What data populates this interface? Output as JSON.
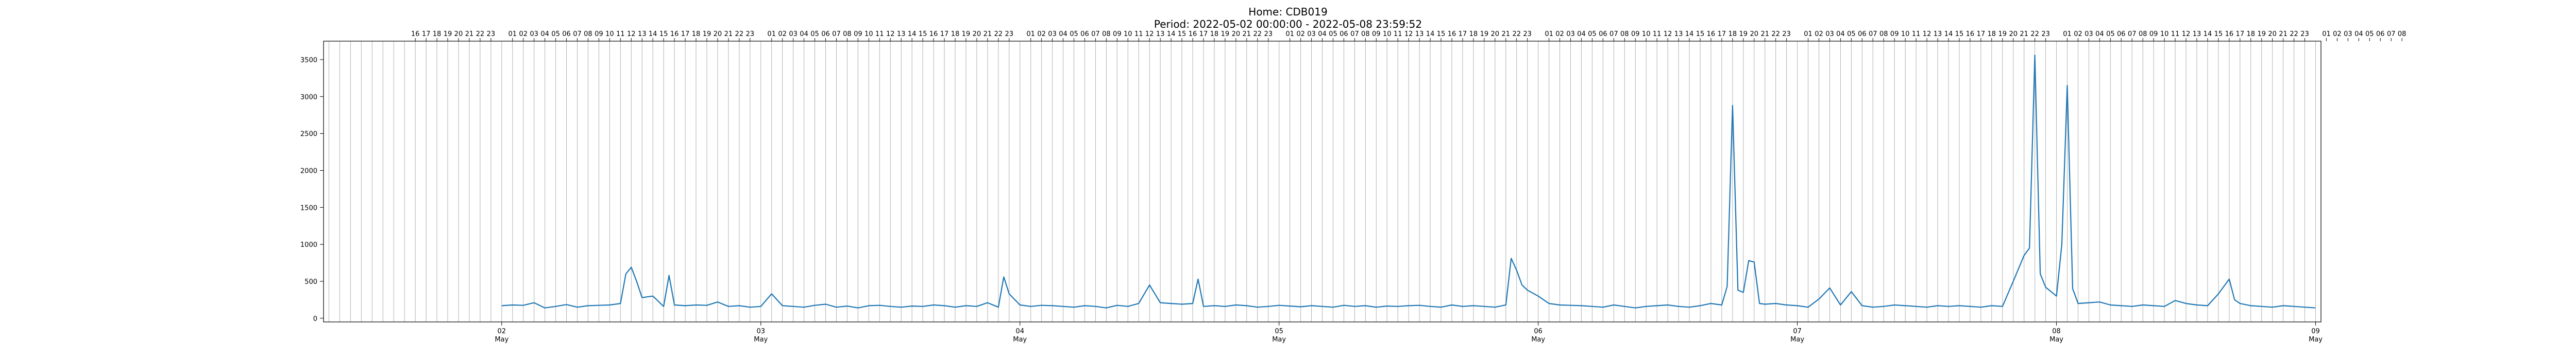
{
  "chart_data": {
    "type": "line",
    "title_line1": "Home: CDB019",
    "title_line2": "Period: 2022-05-02 00:00:00 - 2022-05-08 23:59:52",
    "xlabel": "",
    "ylabel": "",
    "ylim": [
      -50,
      3750
    ],
    "yticks": [
      0,
      500,
      1000,
      1500,
      2000,
      2500,
      3000,
      3500
    ],
    "xlim_hours": [
      -16.5,
      168.5
    ],
    "x_axis_start": "2022-05-01 07:30",
    "x_axis_end": "2022-05-09 08:30",
    "bottom_ticks": [
      {
        "day": "02",
        "month": "May"
      },
      {
        "day": "03",
        "month": "May"
      },
      {
        "day": "04",
        "month": "May"
      },
      {
        "day": "05",
        "month": "May"
      },
      {
        "day": "06",
        "month": "May"
      },
      {
        "day": "07",
        "month": "May"
      },
      {
        "day": "08",
        "month": "May"
      },
      {
        "day": "09",
        "month": "May"
      }
    ],
    "top_hour_labels_first_day": [
      "16",
      "17",
      "18",
      "19",
      "20",
      "21",
      "22",
      "23"
    ],
    "top_hour_labels_full_day": [
      "01",
      "02",
      "03",
      "04",
      "05",
      "06",
      "07",
      "08",
      "09",
      "10",
      "11",
      "12",
      "13",
      "14",
      "15",
      "16",
      "17",
      "18",
      "19",
      "20",
      "21",
      "22",
      "23"
    ],
    "top_hour_labels_last_day": [
      "01",
      "02",
      "03",
      "04",
      "05",
      "06",
      "07",
      "08"
    ],
    "grid": "vertical hourly gridlines",
    "line_color": "#1f77b4",
    "series": [
      {
        "name": "",
        "points": [
          [
            "2022-05-02 00:00",
            170
          ],
          [
            "2022-05-02 01:00",
            180
          ],
          [
            "2022-05-02 02:00",
            175
          ],
          [
            "2022-05-02 03:00",
            210
          ],
          [
            "2022-05-02 04:00",
            140
          ],
          [
            "2022-05-02 05:00",
            160
          ],
          [
            "2022-05-02 06:00",
            185
          ],
          [
            "2022-05-02 07:00",
            150
          ],
          [
            "2022-05-02 08:00",
            170
          ],
          [
            "2022-05-02 09:00",
            175
          ],
          [
            "2022-05-02 10:00",
            180
          ],
          [
            "2022-05-02 11:00",
            200
          ],
          [
            "2022-05-02 11:30",
            600
          ],
          [
            "2022-05-02 12:00",
            690
          ],
          [
            "2022-05-02 12:30",
            500
          ],
          [
            "2022-05-02 13:00",
            280
          ],
          [
            "2022-05-02 14:00",
            300
          ],
          [
            "2022-05-02 15:00",
            160
          ],
          [
            "2022-05-02 15:30",
            580
          ],
          [
            "2022-05-02 16:00",
            180
          ],
          [
            "2022-05-02 17:00",
            170
          ],
          [
            "2022-05-02 18:00",
            180
          ],
          [
            "2022-05-02 19:00",
            175
          ],
          [
            "2022-05-02 20:00",
            220
          ],
          [
            "2022-05-02 21:00",
            160
          ],
          [
            "2022-05-02 22:00",
            170
          ],
          [
            "2022-05-02 23:00",
            150
          ],
          [
            "2022-05-03 00:00",
            160
          ],
          [
            "2022-05-03 01:00",
            330
          ],
          [
            "2022-05-03 02:00",
            170
          ],
          [
            "2022-05-03 03:00",
            160
          ],
          [
            "2022-05-03 04:00",
            150
          ],
          [
            "2022-05-03 05:00",
            175
          ],
          [
            "2022-05-03 06:00",
            190
          ],
          [
            "2022-05-03 07:00",
            150
          ],
          [
            "2022-05-03 08:00",
            165
          ],
          [
            "2022-05-03 09:00",
            140
          ],
          [
            "2022-05-03 10:00",
            170
          ],
          [
            "2022-05-03 11:00",
            175
          ],
          [
            "2022-05-03 12:00",
            160
          ],
          [
            "2022-05-03 13:00",
            150
          ],
          [
            "2022-05-03 14:00",
            165
          ],
          [
            "2022-05-03 15:00",
            160
          ],
          [
            "2022-05-03 16:00",
            180
          ],
          [
            "2022-05-03 17:00",
            170
          ],
          [
            "2022-05-03 18:00",
            150
          ],
          [
            "2022-05-03 19:00",
            170
          ],
          [
            "2022-05-03 20:00",
            160
          ],
          [
            "2022-05-03 21:00",
            210
          ],
          [
            "2022-05-03 22:00",
            150
          ],
          [
            "2022-05-03 22:30",
            560
          ],
          [
            "2022-05-03 23:00",
            330
          ],
          [
            "2022-05-04 00:00",
            180
          ],
          [
            "2022-05-04 01:00",
            160
          ],
          [
            "2022-05-04 02:00",
            175
          ],
          [
            "2022-05-04 03:00",
            170
          ],
          [
            "2022-05-04 04:00",
            160
          ],
          [
            "2022-05-04 05:00",
            150
          ],
          [
            "2022-05-04 06:00",
            170
          ],
          [
            "2022-05-04 07:00",
            160
          ],
          [
            "2022-05-04 08:00",
            140
          ],
          [
            "2022-05-04 09:00",
            175
          ],
          [
            "2022-05-04 10:00",
            160
          ],
          [
            "2022-05-04 11:00",
            200
          ],
          [
            "2022-05-04 12:00",
            450
          ],
          [
            "2022-05-04 13:00",
            210
          ],
          [
            "2022-05-04 14:00",
            200
          ],
          [
            "2022-05-04 15:00",
            190
          ],
          [
            "2022-05-04 16:00",
            200
          ],
          [
            "2022-05-04 16:30",
            530
          ],
          [
            "2022-05-04 17:00",
            160
          ],
          [
            "2022-05-04 18:00",
            170
          ],
          [
            "2022-05-04 19:00",
            160
          ],
          [
            "2022-05-04 20:00",
            180
          ],
          [
            "2022-05-04 21:00",
            170
          ],
          [
            "2022-05-04 22:00",
            150
          ],
          [
            "2022-05-04 23:00",
            160
          ],
          [
            "2022-05-05 00:00",
            175
          ],
          [
            "2022-05-05 01:00",
            165
          ],
          [
            "2022-05-05 02:00",
            155
          ],
          [
            "2022-05-05 03:00",
            170
          ],
          [
            "2022-05-05 04:00",
            160
          ],
          [
            "2022-05-05 05:00",
            150
          ],
          [
            "2022-05-05 06:00",
            175
          ],
          [
            "2022-05-05 07:00",
            160
          ],
          [
            "2022-05-05 08:00",
            170
          ],
          [
            "2022-05-05 09:00",
            150
          ],
          [
            "2022-05-05 10:00",
            165
          ],
          [
            "2022-05-05 11:00",
            160
          ],
          [
            "2022-05-05 12:00",
            170
          ],
          [
            "2022-05-05 13:00",
            175
          ],
          [
            "2022-05-05 14:00",
            160
          ],
          [
            "2022-05-05 15:00",
            150
          ],
          [
            "2022-05-05 16:00",
            180
          ],
          [
            "2022-05-05 17:00",
            160
          ],
          [
            "2022-05-05 18:00",
            170
          ],
          [
            "2022-05-05 19:00",
            160
          ],
          [
            "2022-05-05 20:00",
            150
          ],
          [
            "2022-05-05 21:00",
            180
          ],
          [
            "2022-05-05 21:30",
            810
          ],
          [
            "2022-05-05 22:00",
            650
          ],
          [
            "2022-05-05 22:30",
            450
          ],
          [
            "2022-05-05 23:00",
            380
          ],
          [
            "2022-05-06 00:00",
            300
          ],
          [
            "2022-05-06 01:00",
            200
          ],
          [
            "2022-05-06 02:00",
            180
          ],
          [
            "2022-05-06 03:00",
            175
          ],
          [
            "2022-05-06 04:00",
            170
          ],
          [
            "2022-05-06 05:00",
            160
          ],
          [
            "2022-05-06 06:00",
            150
          ],
          [
            "2022-05-06 07:00",
            180
          ],
          [
            "2022-05-06 08:00",
            160
          ],
          [
            "2022-05-06 09:00",
            140
          ],
          [
            "2022-05-06 10:00",
            160
          ],
          [
            "2022-05-06 11:00",
            170
          ],
          [
            "2022-05-06 12:00",
            180
          ],
          [
            "2022-05-06 13:00",
            160
          ],
          [
            "2022-05-06 14:00",
            150
          ],
          [
            "2022-05-06 15:00",
            170
          ],
          [
            "2022-05-06 16:00",
            200
          ],
          [
            "2022-05-06 17:00",
            180
          ],
          [
            "2022-05-06 17:30",
            430
          ],
          [
            "2022-05-06 18:00",
            2880
          ],
          [
            "2022-05-06 18:30",
            380
          ],
          [
            "2022-05-06 19:00",
            350
          ],
          [
            "2022-05-06 19:30",
            780
          ],
          [
            "2022-05-06 20:00",
            760
          ],
          [
            "2022-05-06 20:30",
            200
          ],
          [
            "2022-05-06 21:00",
            190
          ],
          [
            "2022-05-06 22:00",
            200
          ],
          [
            "2022-05-06 23:00",
            180
          ],
          [
            "2022-05-07 00:00",
            170
          ],
          [
            "2022-05-07 01:00",
            150
          ],
          [
            "2022-05-07 02:00",
            260
          ],
          [
            "2022-05-07 03:00",
            410
          ],
          [
            "2022-05-07 04:00",
            180
          ],
          [
            "2022-05-07 05:00",
            360
          ],
          [
            "2022-05-07 06:00",
            170
          ],
          [
            "2022-05-07 07:00",
            150
          ],
          [
            "2022-05-07 08:00",
            160
          ],
          [
            "2022-05-07 09:00",
            180
          ],
          [
            "2022-05-07 10:00",
            170
          ],
          [
            "2022-05-07 11:00",
            160
          ],
          [
            "2022-05-07 12:00",
            150
          ],
          [
            "2022-05-07 13:00",
            170
          ],
          [
            "2022-05-07 14:00",
            160
          ],
          [
            "2022-05-07 15:00",
            170
          ],
          [
            "2022-05-07 16:00",
            160
          ],
          [
            "2022-05-07 17:00",
            150
          ],
          [
            "2022-05-07 18:00",
            170
          ],
          [
            "2022-05-07 19:00",
            160
          ],
          [
            "2022-05-07 20:00",
            500
          ],
          [
            "2022-05-07 21:00",
            850
          ],
          [
            "2022-05-07 21:30",
            950
          ],
          [
            "2022-05-07 22:00",
            3560
          ],
          [
            "2022-05-07 22:30",
            600
          ],
          [
            "2022-05-07 23:00",
            420
          ],
          [
            "2022-05-08 00:00",
            300
          ],
          [
            "2022-05-08 00:30",
            1000
          ],
          [
            "2022-05-08 01:00",
            3150
          ],
          [
            "2022-05-08 01:30",
            400
          ],
          [
            "2022-05-08 02:00",
            200
          ],
          [
            "2022-05-08 03:00",
            210
          ],
          [
            "2022-05-08 04:00",
            220
          ],
          [
            "2022-05-08 05:00",
            180
          ],
          [
            "2022-05-08 06:00",
            170
          ],
          [
            "2022-05-08 07:00",
            160
          ],
          [
            "2022-05-08 08:00",
            180
          ],
          [
            "2022-05-08 09:00",
            170
          ],
          [
            "2022-05-08 10:00",
            160
          ],
          [
            "2022-05-08 11:00",
            240
          ],
          [
            "2022-05-08 12:00",
            200
          ],
          [
            "2022-05-08 13:00",
            180
          ],
          [
            "2022-05-08 14:00",
            170
          ],
          [
            "2022-05-08 15:00",
            330
          ],
          [
            "2022-05-08 16:00",
            530
          ],
          [
            "2022-05-08 16:30",
            250
          ],
          [
            "2022-05-08 17:00",
            200
          ],
          [
            "2022-05-08 18:00",
            170
          ],
          [
            "2022-05-08 19:00",
            160
          ],
          [
            "2022-05-08 20:00",
            150
          ],
          [
            "2022-05-08 21:00",
            170
          ],
          [
            "2022-05-08 22:00",
            160
          ],
          [
            "2022-05-08 23:00",
            150
          ],
          [
            "2022-05-08 23:59",
            140
          ]
        ]
      }
    ]
  }
}
